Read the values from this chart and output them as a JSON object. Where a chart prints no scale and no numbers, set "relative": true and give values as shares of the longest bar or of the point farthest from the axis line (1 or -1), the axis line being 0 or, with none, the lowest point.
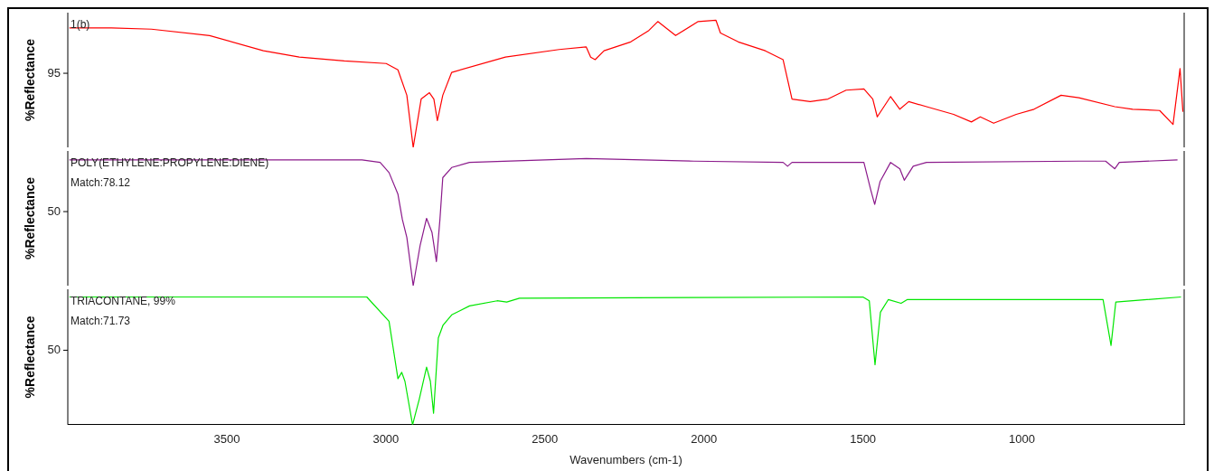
{
  "chart_data": [
    {
      "type": "line",
      "relative": true,
      "ylabel": "%Reflectance",
      "xlim": [
        4000,
        490
      ],
      "xticks": [
        3500,
        3000,
        2500,
        2000,
        1500,
        1000
      ],
      "tick_labels": false,
      "grid": false,
      "legend": false,
      "annotations": [
        "95",
        "1(b)"
      ],
      "series": [
        {
          "color": "#ff0000",
          "x": [
            3995,
            3863,
            3737,
            3554,
            3385,
            3272,
            3131,
            2999,
            2962,
            2934,
            2914,
            2889,
            2863,
            2849,
            2838,
            2821,
            2793,
            2624,
            2455,
            2370,
            2356,
            2342,
            2314,
            2230,
            2173,
            2145,
            2089,
            2018,
            1962,
            1948,
            1892,
            1807,
            1751,
            1723,
            1666,
            1610,
            1553,
            1497,
            1469,
            1455,
            1413,
            1384,
            1356,
            1300,
            1215,
            1159,
            1131,
            1089,
            1018,
            962,
            877,
            821,
            708,
            652,
            567,
            525,
            503,
            494
          ],
          "values": [
            0.94,
            0.94,
            0.93,
            0.88,
            0.76,
            0.71,
            0.68,
            0.66,
            0.61,
            0.41,
            0,
            0.38,
            0.43,
            0.38,
            0.21,
            0.41,
            0.59,
            0.71,
            0.77,
            0.79,
            0.71,
            0.69,
            0.76,
            0.83,
            0.92,
            0.99,
            0.88,
            0.99,
            1,
            0.9,
            0.83,
            0.76,
            0.69,
            0.38,
            0.36,
            0.38,
            0.45,
            0.46,
            0.38,
            0.24,
            0.4,
            0.3,
            0.36,
            0.32,
            0.26,
            0.2,
            0.24,
            0.19,
            0.26,
            0.3,
            0.41,
            0.39,
            0.32,
            0.3,
            0.29,
            0.18,
            0.62,
            0.28
          ]
        }
      ]
    },
    {
      "type": "line",
      "relative": true,
      "ylabel": "%Reflectance",
      "xlim": [
        4000,
        490
      ],
      "xticks": [
        3500,
        3000,
        2500,
        2000,
        1500,
        1000
      ],
      "tick_labels": false,
      "grid": false,
      "legend": false,
      "annotations": [
        "50",
        "POLY(ETHYLENE:PROPYLENE:DIENE)",
        "Match:78.12"
      ],
      "series": [
        {
          "color": "#8b1a8b",
          "x": [
            3995,
            3075,
            3018,
            2990,
            2962,
            2948,
            2934,
            2914,
            2892,
            2872,
            2855,
            2841,
            2830,
            2821,
            2793,
            2737,
            2370,
            2032,
            1751,
            1737,
            1723,
            1497,
            1475,
            1463,
            1446,
            1413,
            1384,
            1370,
            1342,
            1300,
            821,
            737,
            708,
            694,
            511
          ],
          "values": [
            0.99,
            0.99,
            0.97,
            0.89,
            0.72,
            0.52,
            0.38,
            0,
            0.32,
            0.53,
            0.42,
            0.19,
            0.52,
            0.85,
            0.93,
            0.97,
            1,
            0.98,
            0.97,
            0.94,
            0.97,
            0.97,
            0.75,
            0.64,
            0.82,
            0.97,
            0.92,
            0.83,
            0.94,
            0.97,
            0.98,
            0.98,
            0.92,
            0.97,
            0.99
          ]
        }
      ]
    },
    {
      "type": "line",
      "relative": true,
      "ylabel": "%Reflectance",
      "xlabel": "Wavenumbers (cm-1)",
      "xlim": [
        4000,
        490
      ],
      "xticks": [
        3500,
        3000,
        2500,
        2000,
        1500,
        1000
      ],
      "grid": false,
      "legend": false,
      "annotations": [
        "50",
        "TRIACONTANE, 99%",
        "Match:71.73"
      ],
      "series": [
        {
          "color": "#00e600",
          "x": [
            3995,
            3060,
            2990,
            2962,
            2950,
            2940,
            2916,
            2895,
            2872,
            2860,
            2850,
            2835,
            2820,
            2793,
            2737,
            2650,
            2620,
            2580,
            1500,
            1480,
            1462,
            1445,
            1420,
            1380,
            1360,
            745,
            720,
            705,
            500
          ],
          "values": [
            1,
            1,
            0.81,
            0.36,
            0.41,
            0.34,
            0,
            0.2,
            0.45,
            0.34,
            0.09,
            0.68,
            0.78,
            0.86,
            0.93,
            0.97,
            0.96,
            0.99,
            1,
            0.97,
            0.47,
            0.88,
            0.98,
            0.95,
            0.98,
            0.98,
            0.62,
            0.96,
            1
          ]
        }
      ]
    }
  ]
}
